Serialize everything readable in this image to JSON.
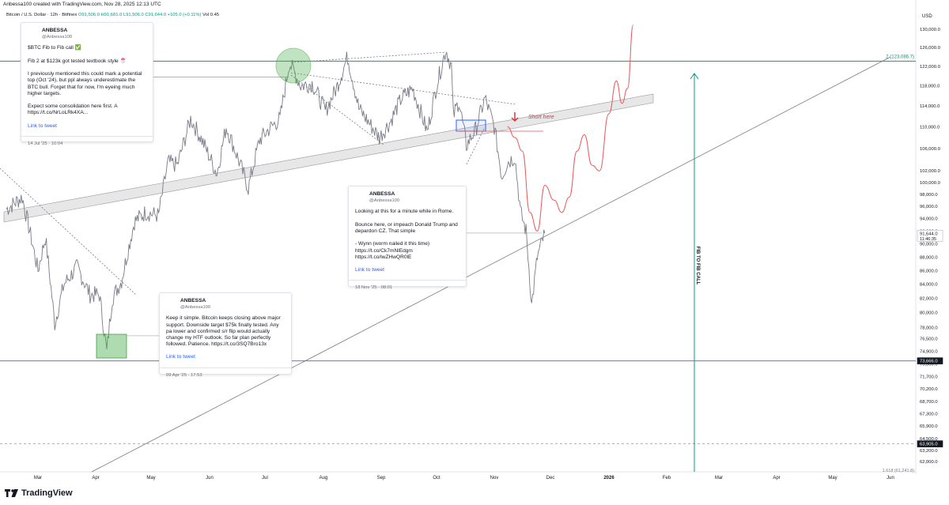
{
  "header": {
    "created_by": "Anbessa100 created with TradingView.com, Nov 28, 2025 12:13 UTC",
    "symbol": "Bitcoin / U.S. Dollar · 12h · Bitfinex",
    "ohlc": "O91,506.0  H91,681.0  L91,506.0  C91,644.0  +105.0 (+0.11%)",
    "vol": "Vol 0.45"
  },
  "chart_data": {
    "type": "line",
    "title": "Bitcoin / U.S. Dollar · 12h · Bitfinex",
    "currency": "USD",
    "x_ticks": [
      "Mar",
      "Apr",
      "May",
      "Jun",
      "Jul",
      "Aug",
      "Sep",
      "Oct",
      "Nov",
      "Dec",
      "2026",
      "Feb",
      "Mar",
      "Apr",
      "May",
      "Jun"
    ],
    "y_ticks": [
      "130,000.0",
      "126,000.0",
      "122,000.0",
      "118,000.0",
      "114,000.0",
      "110,000.0",
      "106,000.0",
      "102,000.0",
      "100,000.0",
      "98,000.0",
      "96,000.0",
      "94,000.0",
      "92,000.0",
      "90,000.0",
      "88,000.0",
      "86,000.0",
      "84,000.0",
      "82,000.0",
      "80,000.0",
      "78,000.0",
      "76,500.0",
      "74,900.0",
      "73,300.0",
      "71,700.0",
      "70,200.0",
      "68,700.0",
      "67,300.0",
      "65,900.0",
      "64,500.0",
      "63,200.0",
      "62,000.0"
    ],
    "series": [
      {
        "values": [
          [
            "2025-02-15",
            95500
          ],
          [
            "2025-02-22",
            97500
          ],
          [
            "2025-03-01",
            86000
          ],
          [
            "2025-03-05",
            91000
          ],
          [
            "2025-03-10",
            78500
          ],
          [
            "2025-03-15",
            84000
          ],
          [
            "2025-03-22",
            86500
          ],
          [
            "2025-03-29",
            82500
          ],
          [
            "2025-04-03",
            82500
          ],
          [
            "2025-04-07",
            74800
          ],
          [
            "2025-04-10",
            82000
          ],
          [
            "2025-04-15",
            84500
          ],
          [
            "2025-04-22",
            93500
          ],
          [
            "2025-04-28",
            95000
          ],
          [
            "2025-05-05",
            94500
          ],
          [
            "2025-05-10",
            103500
          ],
          [
            "2025-05-15",
            103000
          ],
          [
            "2025-05-22",
            111500
          ],
          [
            "2025-05-28",
            107500
          ],
          [
            "2025-06-05",
            101500
          ],
          [
            "2025-06-10",
            110000
          ],
          [
            "2025-06-15",
            105500
          ],
          [
            "2025-06-22",
            99000
          ],
          [
            "2025-06-28",
            107500
          ],
          [
            "2025-07-03",
            109500
          ],
          [
            "2025-07-09",
            111500
          ],
          [
            "2025-07-14",
            122800
          ],
          [
            "2025-07-20",
            118000
          ],
          [
            "2025-07-26",
            118500
          ],
          [
            "2025-08-02",
            113000
          ],
          [
            "2025-08-08",
            117500
          ],
          [
            "2025-08-14",
            124000
          ],
          [
            "2025-08-20",
            113500
          ],
          [
            "2025-08-26",
            110500
          ],
          [
            "2025-08-31",
            108000
          ],
          [
            "2025-09-06",
            111000
          ],
          [
            "2025-09-12",
            115500
          ],
          [
            "2025-09-18",
            117500
          ],
          [
            "2025-09-26",
            109000
          ],
          [
            "2025-10-01",
            118000
          ],
          [
            "2025-10-06",
            125500
          ],
          [
            "2025-10-09",
            122000
          ],
          [
            "2025-10-10",
            112000
          ],
          [
            "2025-10-13",
            115000
          ],
          [
            "2025-10-17",
            106500
          ],
          [
            "2025-10-22",
            109500
          ],
          [
            "2025-10-27",
            115500
          ],
          [
            "2025-11-01",
            110000
          ],
          [
            "2025-11-05",
            101000
          ],
          [
            "2025-11-08",
            103500
          ],
          [
            "2025-11-12",
            104500
          ],
          [
            "2025-11-15",
            95000
          ],
          [
            "2025-11-18",
            92000
          ],
          [
            "2025-11-21",
            81000
          ],
          [
            "2025-11-24",
            88000
          ],
          [
            "2025-11-28",
            91644
          ]
        ]
      },
      {
        "values": [
          [
            "2025-11-08",
            110000
          ],
          [
            "2025-11-12",
            108000
          ],
          [
            "2025-11-16",
            105500
          ],
          [
            "2025-11-20",
            95000
          ],
          [
            "2025-11-24",
            92000
          ],
          [
            "2025-11-28",
            99500
          ],
          [
            "2025-12-03",
            97000
          ],
          [
            "2025-12-07",
            95000
          ],
          [
            "2025-12-11",
            97500
          ],
          [
            "2025-12-15",
            105500
          ],
          [
            "2025-12-19",
            108500
          ],
          [
            "2025-12-23",
            103000
          ],
          [
            "2025-12-27",
            102000
          ],
          [
            "2026-01-01",
            112500
          ],
          [
            "2026-01-05",
            119000
          ],
          [
            "2026-01-08",
            114500
          ],
          [
            "2026-01-11",
            117500
          ],
          [
            "2026-01-14",
            131000
          ]
        ]
      }
    ],
    "fib_level": "2 (123,086.7)",
    "price_tags": [
      {
        "label": "91,644.0",
        "sub": "11:46:35"
      },
      {
        "label": "73,666.0"
      },
      {
        "label": "63,905.0"
      }
    ],
    "bottom_label": "1.618 (61,241.8)",
    "annotations": [
      "Short here",
      "FIB TO FIB CALL"
    ],
    "y_range": [
      61000,
      131500
    ],
    "colors": {
      "price": "#787b86",
      "projection": "#e8585b",
      "fib": "#089981",
      "channel": "#e7e7e7",
      "red_arrow": "#d23a3a",
      "blue_box": "#2962ff"
    }
  },
  "tweets": [
    {
      "name": "ANBESSA",
      "handle": "@Anbessa100",
      "text": "$BTC  Fib to Fib call ✅\n\nFib 2 at $123k got tested textbook style 🍧\n\nI previously mentioned this could mark a potential top (Oct '24), but ppl always underestimate the BTC bull. Forget that for now,  I'm eyeing much higher targets.\n\nExpect some consolidation here first. A https://t.co/NrLoLRk4XA...",
      "link": "Link to tweet",
      "time": "14 Jul '25 · 10:04"
    },
    {
      "name": "ANBESSA",
      "handle": "@Anbessa100",
      "text": "Looking at this for a minute while in Rome.\n\nBounce here, or impeach Donald Trump and depardon CZ. That simple\n\n- Wynn (worm nailed it this time)\nhttps://t.co/Ck7mNlEdgm\nhttps://t.co/lwZHwQR0lE",
      "link": "Link to tweet",
      "time": "18 Nov '25 · 08:01"
    },
    {
      "name": "ANBESSA",
      "handle": "@Anbessa100",
      "text": "Keep it simple. Bitcoin keeps closing above major support. Downside target $75k finally tested. Any pa lower and confirmed s/r flip would actually change my HTF outlook. So far plan perfectly followed. Patience. https://t.co/3SQ7Bro13x",
      "link": "Link to tweet",
      "time": "09 Apr '25 · 17:53"
    }
  ],
  "footer": {
    "logo": "TradingView"
  }
}
